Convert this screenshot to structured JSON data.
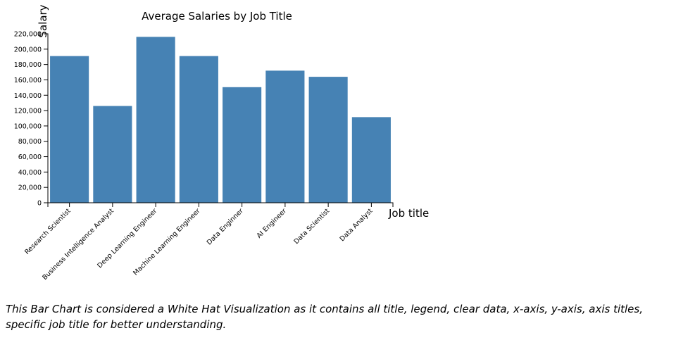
{
  "chart_data": {
    "type": "bar",
    "title": "Average Salaries by Job Title",
    "xlabel": "Job title",
    "ylabel": "Salary",
    "categories": [
      "Research Scientist",
      "Business Intelligence Analyst",
      "Deep Learning Engineer",
      "Machine Learning Engineer",
      "Data Enginner",
      "AI Engineer",
      "Data Scientist",
      "Data Analyst"
    ],
    "values": [
      191000,
      126000,
      216000,
      191000,
      150500,
      172000,
      164000,
      111500
    ],
    "ylim": [
      0,
      220000
    ],
    "yticks": [
      0,
      20000,
      40000,
      60000,
      80000,
      100000,
      120000,
      140000,
      160000,
      180000,
      200000,
      220000
    ],
    "ytick_labels": [
      "0",
      "20,000",
      "40,000",
      "60,000",
      "80,000",
      "100,000",
      "120,000",
      "140,000",
      "160,000",
      "180,000",
      "200,000",
      "220,000"
    ],
    "bar_color": "#4682b4",
    "grid": false,
    "legend": "none"
  },
  "caption": "This Bar Chart is considered a White Hat Visualization as it contains all title, legend, clear data, x-axis, y-axis, axis titles, specific job title for better understanding."
}
